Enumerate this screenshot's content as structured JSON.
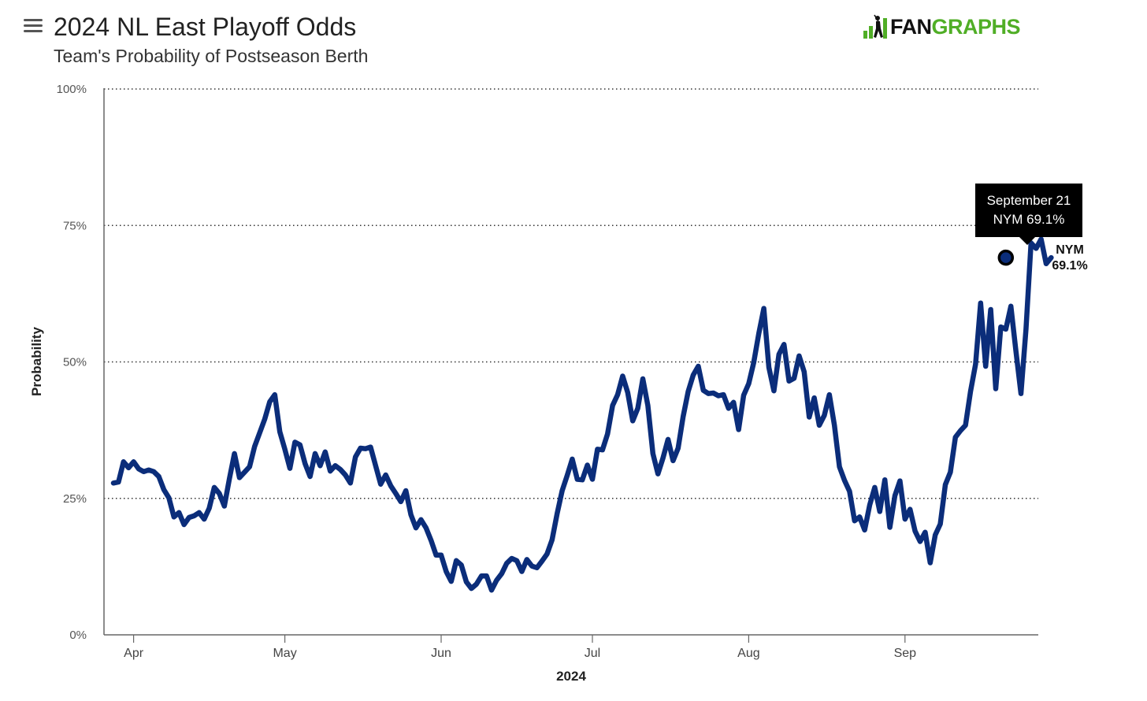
{
  "header": {
    "title": "2024 NL East Playoff Odds",
    "subtitle": "Team's Probability of Postseason Berth"
  },
  "logo": {
    "part1": "FAN",
    "part2": "GRAPHS",
    "icon": "batter-icon"
  },
  "menu": {
    "icon": "hamburger-menu-icon"
  },
  "tooltip": {
    "date": "September 21",
    "value": "NYM 69.1%"
  },
  "end_label": {
    "team": "NYM",
    "value": "69.1%"
  },
  "colors": {
    "line": "#0b2d7a",
    "logo_green": "#50ae26"
  },
  "chart_data": {
    "type": "line",
    "title": "2024 NL East Playoff Odds",
    "subtitle": "Team's Probability of Postseason Berth",
    "xlabel": "2024",
    "ylabel": "Probability",
    "ylim": [
      0,
      100
    ],
    "yticks": [
      "0%",
      "25%",
      "50%",
      "75%",
      "100%"
    ],
    "xtick_labels": [
      "Apr",
      "May",
      "Jun",
      "Jul",
      "Aug",
      "Sep"
    ],
    "grid": "horizontal dotted",
    "series": [
      {
        "name": "NYM",
        "x_start": "2024-03-28",
        "values": [
          27.8,
          28.0,
          31.7,
          30.6,
          31.7,
          30.4,
          29.9,
          30.2,
          29.9,
          29.0,
          26.6,
          25.1,
          21.6,
          22.4,
          20.2,
          21.5,
          21.8,
          22.4,
          21.2,
          23.2,
          27.0,
          25.9,
          23.6,
          28.6,
          33.2,
          28.8,
          29.8,
          30.8,
          34.5,
          37.0,
          39.5,
          42.7,
          44.0,
          37.2,
          34.0,
          30.5,
          35.3,
          34.8,
          31.4,
          29.0,
          33.2,
          31.0,
          33.5,
          30.0,
          31.0,
          30.3,
          29.3,
          27.8,
          32.6,
          34.2,
          34.1,
          34.4,
          31.0,
          27.6,
          29.3,
          27.3,
          25.9,
          24.4,
          26.4,
          22.0,
          19.6,
          21.1,
          19.6,
          17.3,
          14.6,
          14.6,
          11.6,
          9.8,
          13.6,
          12.8,
          9.7,
          8.5,
          9.3,
          10.8,
          10.8,
          8.2,
          10.0,
          11.2,
          13.1,
          14.0,
          13.6,
          11.6,
          13.8,
          12.6,
          12.3,
          13.5,
          14.8,
          17.4,
          22.2,
          26.4,
          29.2,
          32.2,
          28.5,
          28.4,
          31.1,
          28.5,
          34.0,
          33.9,
          36.8,
          42.0,
          44.0,
          47.4,
          44.4,
          39.2,
          41.5,
          46.9,
          42.0,
          33.2,
          29.5,
          32.4,
          35.8,
          31.9,
          34.2,
          40.0,
          44.6,
          47.6,
          49.2,
          44.8,
          44.2,
          44.3,
          43.8,
          44.0,
          41.5,
          42.6,
          37.6,
          43.9,
          46.0,
          49.9,
          55.2,
          59.8,
          49.0,
          44.7,
          51.4,
          53.2,
          46.5,
          47.0,
          51.1,
          48.2,
          39.9,
          43.4,
          38.4,
          40.2,
          44.0,
          38.4,
          30.8,
          28.3,
          26.3,
          20.9,
          21.6,
          19.2,
          23.8,
          27.0,
          22.6,
          28.4,
          19.7,
          25.5,
          28.2,
          21.2,
          23.0,
          19.0,
          17.1,
          18.8,
          13.2,
          18.3,
          20.3,
          27.5,
          29.8,
          36.2,
          37.4,
          38.4,
          44.6,
          49.6,
          60.8,
          49.2,
          59.6,
          45.1,
          56.4,
          56.0,
          60.2,
          52.0,
          44.2,
          56.0,
          71.8,
          70.8,
          72.5,
          68.0,
          69.1
        ]
      }
    ],
    "highlight": {
      "date": "2024-09-21",
      "value": 69.1
    }
  }
}
